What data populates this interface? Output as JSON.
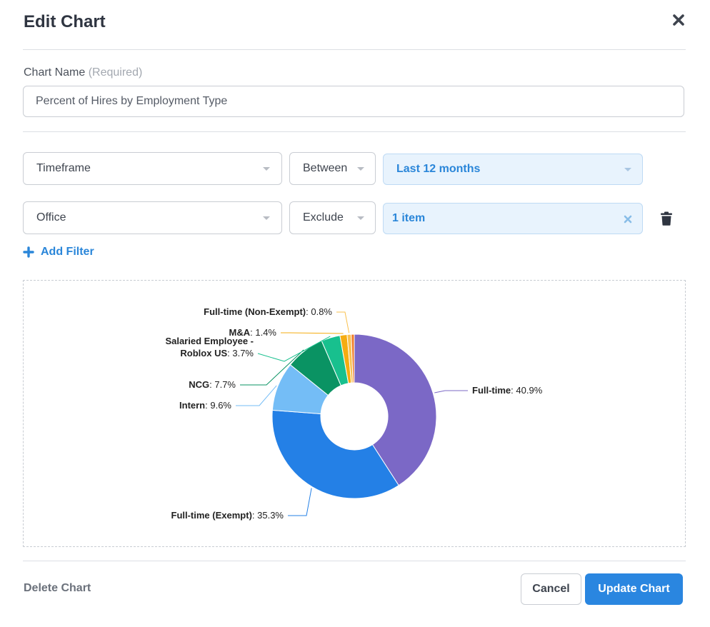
{
  "dialog": {
    "title": "Edit Chart",
    "close_icon": "close-x-icon"
  },
  "chart_name": {
    "label": "Chart Name",
    "required_hint": "(Required)",
    "value": "Percent of Hires by Employment Type"
  },
  "filters": [
    {
      "field": "Timeframe",
      "operator": "Between",
      "value": "Last 12 months"
    },
    {
      "field": "Office",
      "operator": "Exclude",
      "value": "1 item"
    }
  ],
  "add_filter_label": "Add Filter",
  "chart_data": {
    "type": "pie",
    "variant": "donut",
    "slices": [
      {
        "name": "Full-time",
        "value": 40.9,
        "color": "#7b68c6"
      },
      {
        "name": "Full-time (Exempt)",
        "value": 35.3,
        "color": "#2480e6"
      },
      {
        "name": "Intern",
        "value": 9.6,
        "color": "#74bdf6"
      },
      {
        "name": "NCG",
        "value": 7.7,
        "color": "#0a9363"
      },
      {
        "name": "Salaried Employee - Roblox US",
        "value": 3.7,
        "color": "#18c08e"
      },
      {
        "name": "M&A",
        "value": 1.4,
        "color": "#f5ac10"
      },
      {
        "name": "Full-time (Non-Exempt)",
        "value": 0.8,
        "color": "#f9c14f"
      },
      {
        "name": "",
        "value": 0.6,
        "color": "#f07d2b"
      }
    ],
    "label_texts": [
      {
        "lines": [
          "Full-time"
        ],
        "value": ": 40.9%"
      },
      {
        "lines": [
          "Full-time (Exempt)"
        ],
        "value": ": 35.3%"
      },
      {
        "lines": [
          "Intern"
        ],
        "value": ": 9.6%"
      },
      {
        "lines": [
          "NCG"
        ],
        "value": ": 7.7%"
      },
      {
        "lines": [
          "Salaried Employee -",
          "Roblox US"
        ],
        "value": ": 3.7%"
      },
      {
        "lines": [
          "M&A"
        ],
        "value": ": 1.4%"
      },
      {
        "lines": [
          "Full-time (Non-Exempt)"
        ],
        "value": ": 0.8%"
      }
    ]
  },
  "footer": {
    "delete_label": "Delete Chart",
    "cancel_label": "Cancel",
    "update_label": "Update Chart"
  },
  "colors": {
    "accent": "#2a86e0",
    "filter_value_bg": "#e8f3fd"
  }
}
